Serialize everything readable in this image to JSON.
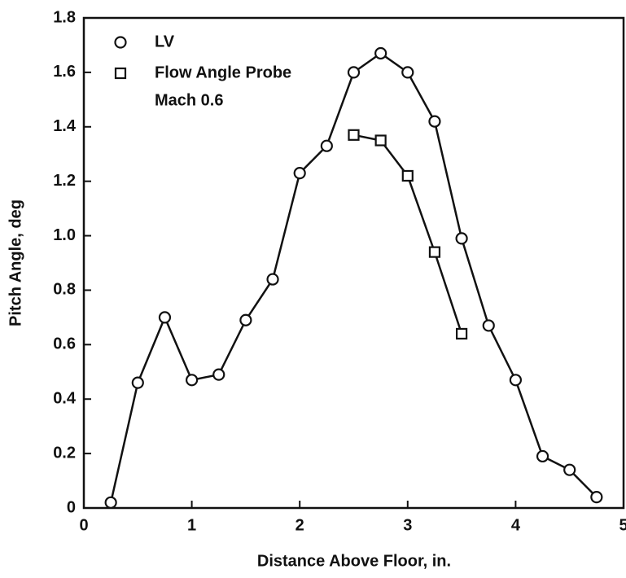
{
  "chart_data": {
    "type": "line",
    "xlabel": "Distance Above Floor, in.",
    "ylabel": "Pitch Angle, deg",
    "annotation": "Mach 0.6",
    "xlim": [
      0,
      5
    ],
    "xticks": [
      0,
      1,
      2,
      3,
      4,
      5
    ],
    "ylim": [
      0,
      1.8
    ],
    "yticks": [
      0,
      {
        "value": 0.2,
        "label": "0.2"
      },
      {
        "value": 0.4,
        "label": "0.4"
      },
      {
        "value": 0.6,
        "label": "0.6"
      },
      {
        "value": 0.8,
        "label": "0.8"
      },
      {
        "value": 1,
        "label": "1.0"
      },
      {
        "value": 1.2,
        "label": "1.2"
      },
      {
        "value": 1.4,
        "label": "1.4"
      },
      {
        "value": 1.6,
        "label": "1.6"
      },
      {
        "value": 1.8,
        "label": "1.8"
      }
    ],
    "legend": "upper left",
    "series": [
      {
        "name": "LV",
        "color": "#111111",
        "marker": "circle",
        "x": [
          0.25,
          0.5,
          0.75,
          1,
          1.25,
          1.5,
          1.75,
          2,
          2.25,
          2.5,
          2.75,
          3,
          3.25,
          3.5,
          3.75,
          4,
          4.25,
          4.5,
          4.75
        ],
        "values": [
          0.02,
          0.46,
          0.7,
          0.47,
          0.49,
          0.69,
          0.84,
          1.23,
          1.33,
          1.6,
          1.67,
          1.6,
          1.42,
          0.99,
          0.67,
          0.47,
          0.19,
          0.14,
          0.04
        ]
      },
      {
        "name": "Flow Angle Probe",
        "color": "#111111",
        "marker": "square",
        "x": [
          2.5,
          2.75,
          3,
          3.25,
          3.5
        ],
        "values": [
          1.37,
          1.35,
          1.22,
          0.94,
          0.64
        ]
      }
    ]
  }
}
